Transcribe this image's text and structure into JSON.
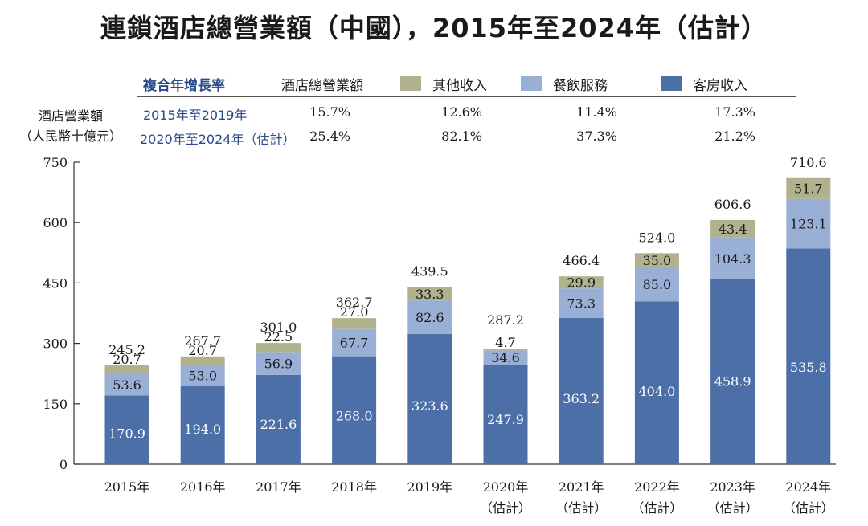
{
  "title": "連鎖酒店總營業額（中國），2015年至2024年（估計）",
  "y_axis_label_line1": "酒店營業額",
  "y_axis_label_line2": "（人民幣十億元）",
  "cagr_table": {
    "header": "複合年增長率",
    "columns": [
      "酒店總營業額",
      "其他收入",
      "餐飲服務",
      "客房收入"
    ],
    "rows": [
      {
        "period": "2015年至2019年",
        "values": [
          "15.7%",
          "12.6%",
          "11.4%",
          "17.3%"
        ]
      },
      {
        "period": "2020年至2024年（估計）",
        "values": [
          "25.4%",
          "82.1%",
          "37.3%",
          "21.2%"
        ]
      }
    ]
  },
  "colors": {
    "rooms": "#4d6fa7",
    "fnb": "#9aafd6",
    "other": "#b0b28e",
    "axis": "#333333",
    "label_blue": "#2b4a8c"
  },
  "chart_data": {
    "type": "bar",
    "stacked": true,
    "title": "連鎖酒店總營業額（中國），2015年至2024年（估計）",
    "ylabel": "酒店營業額（人民幣十億元）",
    "ylim": [
      0,
      750
    ],
    "yticks": [
      0,
      150,
      300,
      450,
      600,
      750
    ],
    "categories": [
      {
        "year": "2015年",
        "note": ""
      },
      {
        "year": "2016年",
        "note": ""
      },
      {
        "year": "2017年",
        "note": ""
      },
      {
        "year": "2018年",
        "note": ""
      },
      {
        "year": "2019年",
        "note": ""
      },
      {
        "year": "2020年",
        "note": "（估計）"
      },
      {
        "year": "2021年",
        "note": "（估計）"
      },
      {
        "year": "2022年",
        "note": "（估計）"
      },
      {
        "year": "2023年",
        "note": "（估計）"
      },
      {
        "year": "2024年",
        "note": "（估計）"
      }
    ],
    "series": [
      {
        "name": "客房收入",
        "key": "rooms",
        "values": [
          170.9,
          194.0,
          221.6,
          268.0,
          323.6,
          247.9,
          363.2,
          404.0,
          458.9,
          535.8
        ]
      },
      {
        "name": "餐飲服務",
        "key": "fnb",
        "values": [
          53.6,
          53.0,
          56.9,
          67.7,
          82.6,
          34.6,
          73.3,
          85.0,
          104.3,
          123.1
        ]
      },
      {
        "name": "其他收入",
        "key": "other",
        "values": [
          20.7,
          20.7,
          22.5,
          27.0,
          33.3,
          4.7,
          29.9,
          35.0,
          43.4,
          51.7
        ]
      }
    ],
    "totals": [
      245.2,
      267.7,
      301.0,
      362.7,
      439.5,
      287.2,
      466.4,
      524.0,
      606.6,
      710.6
    ]
  }
}
